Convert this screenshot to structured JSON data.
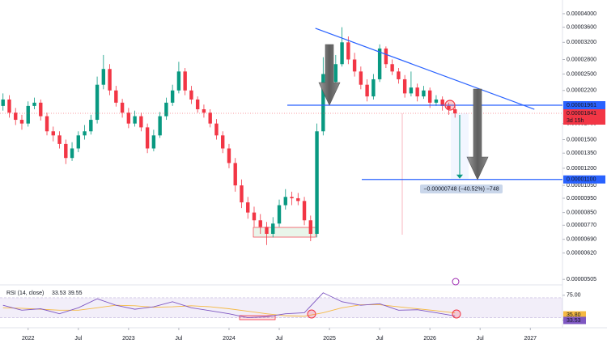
{
  "chart_data": [
    {
      "type": "candlestick",
      "x": [
        2021.75,
        2021.8125,
        2021.875,
        2021.9375,
        2022,
        2022.0625,
        2022.125,
        2022.1875,
        2022.25,
        2022.3125,
        2022.375,
        2022.4375,
        2022.5,
        2022.5625,
        2022.625,
        2022.6875,
        2022.75,
        2022.8125,
        2022.875,
        2022.9375,
        2023,
        2023.0625,
        2023.125,
        2023.1875,
        2023.25,
        2023.3125,
        2023.375,
        2023.4375,
        2023.5,
        2023.5625,
        2023.625,
        2023.6875,
        2023.75,
        2023.8125,
        2023.875,
        2023.9375,
        2024,
        2024.0625,
        2024.125,
        2024.1875,
        2024.25,
        2024.3125,
        2024.375,
        2024.4375,
        2024.5,
        2024.5625,
        2024.625,
        2024.6875,
        2024.75,
        2024.8125,
        2024.875,
        2024.9375,
        2025,
        2025.0625,
        2025.125,
        2025.1875,
        2025.25,
        2025.3125,
        2025.375,
        2025.4375,
        2025.5,
        2025.5625,
        2025.625,
        2025.6875,
        2025.75,
        2025.8125,
        2025.875,
        2025.9375,
        2026,
        2026.0625,
        2026.125,
        2026.1875,
        2026.25
      ],
      "open": [
        1.95e-05,
        2.05e-05,
        1.85e-05,
        1.75e-05,
        1.7e-05,
        1.95e-05,
        2e-05,
        1.8e-05,
        1.6e-05,
        1.55e-05,
        1.45e-05,
        1.3e-05,
        1.4e-05,
        1.55e-05,
        1.6e-05,
        1.75e-05,
        2.3e-05,
        2.6e-05,
        2.2e-05,
        2e-05,
        1.85e-05,
        1.7e-05,
        1.8e-05,
        1.65e-05,
        1.4e-05,
        1.55e-05,
        1.8e-05,
        2e-05,
        2.2e-05,
        2.55e-05,
        2.2e-05,
        2.05e-05,
        1.9e-05,
        1.85e-05,
        1.7e-05,
        1.55e-05,
        1.4e-05,
        1.25e-05,
        1.05e-05,
        9.2e-06,
        8.5e-06,
        8e-06,
        7.6e-06,
        7.2e-06,
        7.8e-06,
        9e-06,
        9.6e-06,
        9.5e-06,
        9.3e-06,
        8e-06,
        7.2e-06,
        1.6e-05,
        2.5e-05,
        2.35e-05,
        2.7e-05,
        3.2e-05,
        2.8e-05,
        2.55e-05,
        2.3e-05,
        2.1e-05,
        2.4e-05,
        3.05e-05,
        2.7e-05,
        2.55e-05,
        2.4e-05,
        2.15e-05,
        2.25e-05,
        2.1e-05,
        2.2e-05,
        2e-05,
        2.05e-05,
        1.95e-05,
        1.9e-05
      ],
      "high": [
        2.15e-05,
        2.12e-05,
        1.92e-05,
        1.82e-05,
        2.02e-05,
        2.08e-05,
        2.05e-05,
        1.85e-05,
        1.66e-05,
        1.6e-05,
        1.5e-05,
        1.47e-05,
        1.6e-05,
        1.68e-05,
        1.82e-05,
        2.45e-05,
        2.9e-05,
        2.7e-05,
        2.28e-05,
        2.06e-05,
        1.92e-05,
        1.88e-05,
        1.85e-05,
        1.7e-05,
        1.62e-05,
        1.86e-05,
        2.08e-05,
        2.3e-05,
        2.75e-05,
        2.62e-05,
        2.28e-05,
        2.1e-05,
        1.97e-05,
        1.9e-05,
        1.76e-05,
        1.6e-05,
        1.45e-05,
        1.3e-05,
        1.1e-05,
        9.6e-06,
        8.9e-06,
        8.4e-06,
        7.9e-06,
        8.2e-06,
        9.4e-06,
        1.02e-05,
        1e-05,
        9.9e-06,
        9.6e-06,
        8.3e-06,
        1.7e-05,
        2.85e-05,
        2.7e-05,
        2.9e-05,
        3.6e-05,
        3.35e-05,
        2.95e-05,
        2.65e-05,
        2.4e-05,
        2.5e-05,
        3.15e-05,
        3.1e-05,
        2.8e-05,
        2.62e-05,
        2.48e-05,
        2.55e-05,
        2.32e-05,
        2.28e-05,
        2.25e-05,
        2.12e-05,
        2.1e-05,
        2e-05,
        1.96e-05
      ],
      "low": [
        1.88e-05,
        1.78e-05,
        1.68e-05,
        1.62e-05,
        1.66e-05,
        1.9e-05,
        1.74e-05,
        1.55e-05,
        1.48e-05,
        1.4e-05,
        1.24e-05,
        1.27e-05,
        1.36e-05,
        1.5e-05,
        1.56e-05,
        1.7e-05,
        2.22e-05,
        2.12e-05,
        1.94e-05,
        1.78e-05,
        1.64e-05,
        1.66e-05,
        1.6e-05,
        1.35e-05,
        1.37e-05,
        1.52e-05,
        1.75e-05,
        1.95e-05,
        2.15e-05,
        2.12e-05,
        1.98e-05,
        1.85e-05,
        1.78e-05,
        1.65e-05,
        1.5e-05,
        1.35e-05,
        1.2e-05,
        1e-05,
        8.8e-06,
        8.1e-06,
        7.6e-06,
        7.2e-06,
        6.6e-06,
        7e-06,
        7.6e-06,
        8.7e-06,
        9e-06,
        9e-06,
        7.7e-06,
        6.8e-06,
        7e-06,
        1.55e-05,
        2.25e-05,
        2.3e-05,
        2.65e-05,
        2.7e-05,
        2.45e-05,
        2.22e-05,
        2.02e-05,
        2.05e-05,
        2.35e-05,
        2.62e-05,
        2.48e-05,
        2.32e-05,
        2.08e-05,
        2.1e-05,
        2.02e-05,
        2.06e-05,
        1.92e-05,
        1.95e-05,
        1.88e-05,
        1.82e-05,
        1.78e-05
      ],
      "close": [
        2.05e-05,
        1.85e-05,
        1.75e-05,
        1.7e-05,
        1.95e-05,
        2e-05,
        1.8e-05,
        1.6e-05,
        1.55e-05,
        1.45e-05,
        1.3e-05,
        1.4e-05,
        1.55e-05,
        1.6e-05,
        1.75e-05,
        2.3e-05,
        2.6e-05,
        2.2e-05,
        2e-05,
        1.85e-05,
        1.7e-05,
        1.8e-05,
        1.65e-05,
        1.4e-05,
        1.55e-05,
        1.8e-05,
        2e-05,
        2.2e-05,
        2.55e-05,
        2.2e-05,
        2.05e-05,
        1.9e-05,
        1.85e-05,
        1.7e-05,
        1.55e-05,
        1.4e-05,
        1.25e-05,
        1.05e-05,
        9.2e-06,
        8.5e-06,
        8e-06,
        7.6e-06,
        7.2e-06,
        7.8e-06,
        9e-06,
        9.6e-06,
        9.5e-06,
        9.3e-06,
        8e-06,
        7.2e-06,
        1.6e-05,
        2.5e-05,
        2.35e-05,
        2.7e-05,
        3.2e-05,
        2.8e-05,
        2.55e-05,
        2.3e-05,
        2.1e-05,
        2.4e-05,
        3.05e-05,
        2.7e-05,
        2.55e-05,
        2.4e-05,
        2.15e-05,
        2.25e-05,
        2.1e-05,
        2.2e-05,
        2e-05,
        2.05e-05,
        1.95e-05,
        1.9e-05,
        1.84e-05
      ],
      "up_color": "#089981",
      "down_color": "#f23645",
      "log_scale": true,
      "ylim": [
        4.9e-06,
        4.45e-05
      ],
      "yticks": [
        {
          "value": 4e-05,
          "label": "0.00004000"
        },
        {
          "value": 3.6e-05,
          "label": "0.00003600"
        },
        {
          "value": 3.2e-05,
          "label": "0.00003200"
        },
        {
          "value": 2.8e-05,
          "label": "0.00002800"
        },
        {
          "value": 2.5e-05,
          "label": "0.00002500"
        },
        {
          "value": 2.2e-05,
          "label": "0.00002200"
        },
        {
          "value": 1.7e-05,
          "label": "0.00001700"
        },
        {
          "value": 1.5e-05,
          "label": "0.00001500"
        },
        {
          "value": 1.35e-05,
          "label": "0.00001350"
        },
        {
          "value": 1.2e-05,
          "label": "0.00001200"
        },
        {
          "value": 1.05e-05,
          "label": "0.00001050"
        },
        {
          "value": 9.5e-06,
          "label": "0.00000950"
        },
        {
          "value": 8.5e-06,
          "label": "0.00000850"
        },
        {
          "value": 7.7e-06,
          "label": "0.00000770"
        },
        {
          "value": 6.9e-06,
          "label": "0.00000690"
        },
        {
          "value": 6.2e-06,
          "label": "0.00000620"
        },
        {
          "value": 5.05e-06,
          "label": "0.00000505"
        }
      ],
      "xlim": [
        2021.72,
        2027.32
      ],
      "xticks": [
        2022,
        {
          "value": 2022.5,
          "label": "Jul"
        },
        2023,
        {
          "value": 2023.5,
          "label": "Jul"
        },
        2024,
        {
          "value": 2024.5,
          "label": "Jul"
        },
        2025,
        {
          "value": 2025.5,
          "label": "Jul"
        },
        2026,
        {
          "value": 2026.5,
          "label": "Jul"
        },
        2027
      ],
      "levels": [
        {
          "value": 1.961e-05,
          "label": "0.00001961",
          "color": "#2962ff"
        },
        {
          "value": 1.1e-05,
          "label": "0.00001100",
          "color": "#2962ff"
        }
      ],
      "last_price": {
        "value": 1.841e-05,
        "label": "0.00001841",
        "countdown": "3d 15h",
        "color": "#f23645"
      },
      "trendline": {
        "x": [
          2024.86,
          2027.04
        ],
        "y": [
          3.57e-05,
          1.9e-05
        ],
        "color": "#2962ff"
      },
      "measure": {
        "label": "−0.00000748 (−40.52%) −748"
      }
    },
    {
      "type": "line",
      "title": "RSI (14, close)",
      "x": [
        2021.75,
        2021.9375,
        2022.125,
        2022.3125,
        2022.5,
        2022.6875,
        2022.875,
        2023.0625,
        2023.25,
        2023.4375,
        2023.625,
        2023.8125,
        2024,
        2024.1875,
        2024.375,
        2024.5625,
        2024.75,
        2024.9375,
        2025.125,
        2025.3125,
        2025.5,
        2025.6875,
        2025.875,
        2026.0625,
        2026.25
      ],
      "series": [
        {
          "color": "#7e57c2",
          "values": [
            55,
            45,
            48,
            38,
            50,
            68,
            55,
            47,
            52,
            62,
            50,
            44,
            38,
            30,
            32,
            38,
            40,
            80,
            62,
            55,
            58,
            45,
            46,
            40,
            33.53
          ],
          "value_label": "33.53"
        },
        {
          "color": "#f5b942",
          "values": [
            50,
            49,
            47,
            45,
            45,
            50,
            55,
            54,
            51,
            52,
            54,
            52,
            48,
            43,
            38,
            34,
            33,
            40,
            50,
            56,
            56,
            52,
            48,
            44,
            39.55
          ],
          "value_label": "39.55"
        }
      ],
      "ylim": [
        18,
        91
      ],
      "yticks": [
        {
          "value": 75,
          "label": "75.00"
        },
        {
          "value": 25,
          "label": "25.00"
        }
      ],
      "band": [
        30,
        70
      ],
      "axis_labels": [
        {
          "value": 35.8,
          "label": "35.80"
        }
      ]
    }
  ]
}
